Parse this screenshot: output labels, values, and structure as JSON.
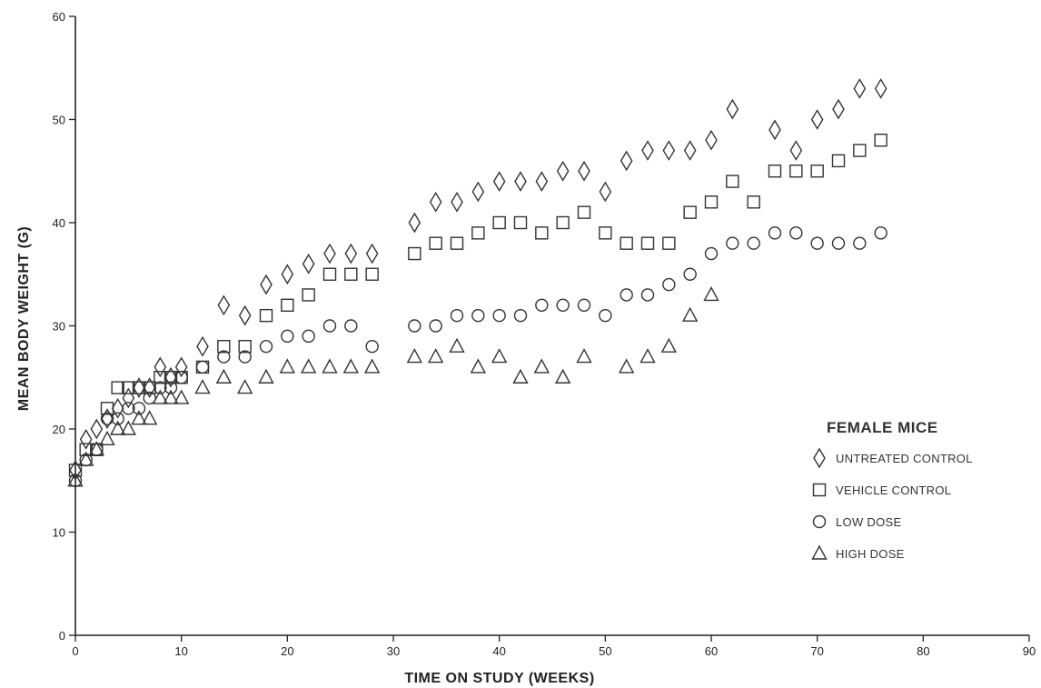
{
  "chart_data": {
    "type": "scatter",
    "xlabel": "TIME ON STUDY (WEEKS)",
    "ylabel": "MEAN BODY WEIGHT (G)",
    "xlim": [
      0,
      90
    ],
    "ylim": [
      0,
      60
    ],
    "xticks": [
      "0",
      "10",
      "20",
      "30",
      "40",
      "50",
      "60",
      "70",
      "80",
      "90"
    ],
    "yticks": [
      "0",
      "10",
      "20",
      "30",
      "40",
      "50",
      "60"
    ],
    "legend": {
      "title": "FEMALE MICE",
      "placement": "right"
    },
    "series": [
      {
        "name": "UNTREATED CONTROL",
        "marker": "diamond",
        "x": [
          0,
          1,
          2,
          3,
          4,
          5,
          6,
          7,
          8,
          9,
          10,
          12,
          14,
          16,
          18,
          20,
          22,
          24,
          26,
          28,
          32,
          34,
          36,
          38,
          40,
          42,
          44,
          46,
          48,
          50,
          52,
          54,
          56,
          58,
          60,
          62,
          66,
          68,
          70,
          72,
          74,
          76
        ],
        "y": [
          16,
          19,
          20,
          21,
          22,
          23,
          24,
          24,
          26,
          25,
          26,
          28,
          32,
          31,
          34,
          35,
          36,
          37,
          37,
          37,
          40,
          42,
          42,
          43,
          44,
          44,
          44,
          45,
          45,
          43,
          46,
          47,
          47,
          47,
          48,
          51,
          49,
          47,
          50,
          51,
          53,
          53
        ]
      },
      {
        "name": "VEHICLE CONTROL",
        "marker": "square",
        "x": [
          0,
          1,
          2,
          3,
          4,
          5,
          6,
          7,
          8,
          9,
          10,
          12,
          14,
          16,
          18,
          20,
          22,
          24,
          26,
          28,
          32,
          34,
          36,
          38,
          40,
          42,
          44,
          46,
          48,
          50,
          52,
          54,
          56,
          58,
          60,
          62,
          64,
          66,
          68,
          70,
          72,
          74,
          76
        ],
        "y": [
          16,
          18,
          18,
          22,
          24,
          24,
          24,
          24,
          25,
          25,
          25,
          26,
          28,
          28,
          31,
          32,
          33,
          35,
          35,
          35,
          37,
          38,
          38,
          39,
          40,
          40,
          39,
          40,
          41,
          39,
          38,
          38,
          38,
          41,
          42,
          44,
          42,
          45,
          45,
          45,
          46,
          47,
          48
        ]
      },
      {
        "name": "LOW DOSE",
        "marker": "circle",
        "x": [
          0,
          1,
          2,
          3,
          4,
          5,
          6,
          7,
          8,
          9,
          10,
          12,
          14,
          16,
          18,
          20,
          22,
          24,
          26,
          28,
          32,
          34,
          36,
          38,
          40,
          42,
          44,
          46,
          48,
          50,
          52,
          54,
          56,
          58,
          60,
          62,
          64,
          66,
          68,
          70,
          72,
          74,
          76
        ],
        "y": [
          15,
          17,
          18,
          21,
          21,
          22,
          22,
          23,
          24,
          24,
          25,
          26,
          27,
          27,
          28,
          29,
          29,
          30,
          30,
          28,
          30,
          30,
          31,
          31,
          31,
          31,
          32,
          32,
          32,
          31,
          33,
          33,
          34,
          35,
          37,
          38,
          38,
          39,
          39,
          38,
          38,
          38,
          39
        ]
      },
      {
        "name": "HIGH DOSE",
        "marker": "triangle",
        "x": [
          0,
          1,
          2,
          3,
          4,
          5,
          6,
          7,
          8,
          9,
          10,
          12,
          14,
          16,
          18,
          20,
          22,
          24,
          26,
          28,
          32,
          34,
          36,
          38,
          40,
          42,
          44,
          46,
          48,
          52,
          54,
          56,
          58,
          60
        ],
        "y": [
          15,
          17,
          18,
          19,
          20,
          20,
          21,
          21,
          23,
          23,
          23,
          24,
          25,
          24,
          25,
          26,
          26,
          26,
          26,
          26,
          27,
          27,
          28,
          26,
          27,
          25,
          26,
          25,
          27,
          26,
          27,
          28,
          31,
          33
        ]
      }
    ]
  }
}
